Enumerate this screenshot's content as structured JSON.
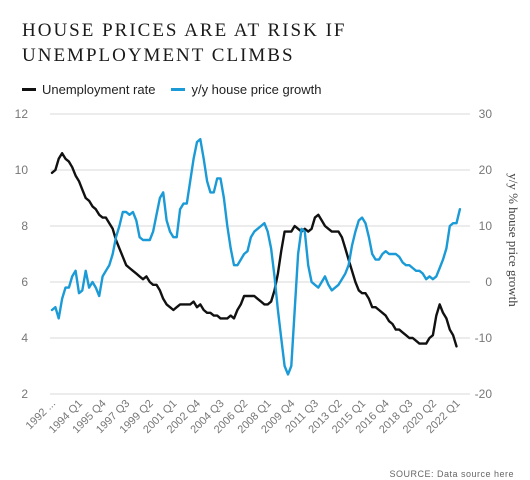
{
  "title": "HOUSE PRICES ARE AT RISK IF UNEMPLOYMENT CLIMBS",
  "source": "SOURCE: Data source here",
  "colors": {
    "unemployment": "#111111",
    "house_growth": "#1a9ad6",
    "grid": "#d9d9d9"
  },
  "chart_data": {
    "type": "line",
    "title": "HOUSE PRICES ARE AT RISK IF UNEMPLOYMENT CLIMBS",
    "xlabel": "",
    "ylabel": "",
    "y2label": "y/y % house price growth",
    "legend_position": "top-left",
    "grid": "horizontal",
    "ylim": [
      2,
      12
    ],
    "y2lim": [
      -20,
      30
    ],
    "yticks": [
      2,
      4,
      6,
      8,
      10,
      12
    ],
    "y2ticks": [
      -20,
      -10,
      0,
      10,
      20,
      30
    ],
    "x_start": 1992.0,
    "x_end": 2023.0,
    "xtick_labels": [
      {
        "x": 1992.0,
        "label": "1992 ..."
      },
      {
        "x": 1994.0,
        "label": "1994 Q1"
      },
      {
        "x": 1995.75,
        "label": "1995 Q4"
      },
      {
        "x": 1997.5,
        "label": "1997 Q3"
      },
      {
        "x": 1999.25,
        "label": "1999 Q2"
      },
      {
        "x": 2001.0,
        "label": "2001 Q1"
      },
      {
        "x": 2002.75,
        "label": "2002 Q4"
      },
      {
        "x": 2004.5,
        "label": "2004 Q3"
      },
      {
        "x": 2006.25,
        "label": "2006 Q2"
      },
      {
        "x": 2008.0,
        "label": "2008 Q1"
      },
      {
        "x": 2009.75,
        "label": "2009 Q4"
      },
      {
        "x": 2011.5,
        "label": "2011 Q3"
      },
      {
        "x": 2013.25,
        "label": "2013 Q2"
      },
      {
        "x": 2015.0,
        "label": "2015 Q1"
      },
      {
        "x": 2016.75,
        "label": "2016 Q4"
      },
      {
        "x": 2018.5,
        "label": "2018 Q3"
      },
      {
        "x": 2020.25,
        "label": "2020 Q2"
      },
      {
        "x": 2022.0,
        "label": "2022 Q1"
      }
    ],
    "series": [
      {
        "name": "Unemployment rate",
        "axis": "left",
        "points": [
          [
            1992.0,
            9.9
          ],
          [
            1992.25,
            10.0
          ],
          [
            1992.5,
            10.4
          ],
          [
            1992.75,
            10.6
          ],
          [
            1993.0,
            10.4
          ],
          [
            1993.25,
            10.3
          ],
          [
            1993.5,
            10.1
          ],
          [
            1993.75,
            9.8
          ],
          [
            1994.0,
            9.6
          ],
          [
            1994.25,
            9.3
          ],
          [
            1994.5,
            9.0
          ],
          [
            1994.75,
            8.9
          ],
          [
            1995.0,
            8.7
          ],
          [
            1995.25,
            8.6
          ],
          [
            1995.5,
            8.4
          ],
          [
            1995.75,
            8.3
          ],
          [
            1996.0,
            8.3
          ],
          [
            1996.25,
            8.1
          ],
          [
            1996.5,
            7.9
          ],
          [
            1996.75,
            7.5
          ],
          [
            1997.0,
            7.2
          ],
          [
            1997.25,
            6.9
          ],
          [
            1997.5,
            6.6
          ],
          [
            1997.75,
            6.5
          ],
          [
            1998.0,
            6.4
          ],
          [
            1998.25,
            6.3
          ],
          [
            1998.5,
            6.2
          ],
          [
            1998.75,
            6.1
          ],
          [
            1999.0,
            6.2
          ],
          [
            1999.25,
            6.0
          ],
          [
            1999.5,
            5.9
          ],
          [
            1999.75,
            5.9
          ],
          [
            2000.0,
            5.7
          ],
          [
            2000.25,
            5.4
          ],
          [
            2000.5,
            5.2
          ],
          [
            2000.75,
            5.1
          ],
          [
            2001.0,
            5.0
          ],
          [
            2001.25,
            5.1
          ],
          [
            2001.5,
            5.2
          ],
          [
            2001.75,
            5.2
          ],
          [
            2002.0,
            5.2
          ],
          [
            2002.25,
            5.2
          ],
          [
            2002.5,
            5.3
          ],
          [
            2002.75,
            5.1
          ],
          [
            2003.0,
            5.2
          ],
          [
            2003.25,
            5.0
          ],
          [
            2003.5,
            4.9
          ],
          [
            2003.75,
            4.9
          ],
          [
            2004.0,
            4.8
          ],
          [
            2004.25,
            4.8
          ],
          [
            2004.5,
            4.7
          ],
          [
            2004.75,
            4.7
          ],
          [
            2005.0,
            4.7
          ],
          [
            2005.25,
            4.8
          ],
          [
            2005.5,
            4.7
          ],
          [
            2005.75,
            5.0
          ],
          [
            2006.0,
            5.2
          ],
          [
            2006.25,
            5.5
          ],
          [
            2006.5,
            5.5
          ],
          [
            2006.75,
            5.5
          ],
          [
            2007.0,
            5.5
          ],
          [
            2007.25,
            5.4
          ],
          [
            2007.5,
            5.3
          ],
          [
            2007.75,
            5.2
          ],
          [
            2008.0,
            5.2
          ],
          [
            2008.25,
            5.3
          ],
          [
            2008.5,
            5.7
          ],
          [
            2008.75,
            6.3
          ],
          [
            2009.0,
            7.1
          ],
          [
            2009.25,
            7.8
          ],
          [
            2009.5,
            7.8
          ],
          [
            2009.75,
            7.8
          ],
          [
            2010.0,
            8.0
          ],
          [
            2010.25,
            7.9
          ],
          [
            2010.5,
            7.8
          ],
          [
            2010.75,
            7.9
          ],
          [
            2011.0,
            7.8
          ],
          [
            2011.25,
            7.9
          ],
          [
            2011.5,
            8.3
          ],
          [
            2011.75,
            8.4
          ],
          [
            2012.0,
            8.2
          ],
          [
            2012.25,
            8.0
          ],
          [
            2012.5,
            7.9
          ],
          [
            2012.75,
            7.8
          ],
          [
            2013.0,
            7.8
          ],
          [
            2013.25,
            7.8
          ],
          [
            2013.5,
            7.6
          ],
          [
            2013.75,
            7.2
          ],
          [
            2014.0,
            6.8
          ],
          [
            2014.25,
            6.4
          ],
          [
            2014.5,
            6.0
          ],
          [
            2014.75,
            5.7
          ],
          [
            2015.0,
            5.6
          ],
          [
            2015.25,
            5.6
          ],
          [
            2015.5,
            5.4
          ],
          [
            2015.75,
            5.1
          ],
          [
            2016.0,
            5.1
          ],
          [
            2016.25,
            5.0
          ],
          [
            2016.5,
            4.9
          ],
          [
            2016.75,
            4.8
          ],
          [
            2017.0,
            4.6
          ],
          [
            2017.25,
            4.5
          ],
          [
            2017.5,
            4.3
          ],
          [
            2017.75,
            4.3
          ],
          [
            2018.0,
            4.2
          ],
          [
            2018.25,
            4.1
          ],
          [
            2018.5,
            4.0
          ],
          [
            2018.75,
            4.0
          ],
          [
            2019.0,
            3.9
          ],
          [
            2019.25,
            3.8
          ],
          [
            2019.5,
            3.8
          ],
          [
            2019.75,
            3.8
          ],
          [
            2020.0,
            4.0
          ],
          [
            2020.25,
            4.1
          ],
          [
            2020.5,
            4.8
          ],
          [
            2020.75,
            5.2
          ],
          [
            2021.0,
            4.9
          ],
          [
            2021.25,
            4.7
          ],
          [
            2021.5,
            4.3
          ],
          [
            2021.75,
            4.1
          ],
          [
            2022.0,
            3.7
          ]
        ]
      },
      {
        "name": "y/y house price growth",
        "axis": "right",
        "points": [
          [
            1992.0,
            -5
          ],
          [
            1992.25,
            -4.5
          ],
          [
            1992.5,
            -6.5
          ],
          [
            1992.75,
            -3
          ],
          [
            1993.0,
            -1
          ],
          [
            1993.25,
            -1
          ],
          [
            1993.5,
            1
          ],
          [
            1993.75,
            2
          ],
          [
            1994.0,
            -2
          ],
          [
            1994.25,
            -1.5
          ],
          [
            1994.5,
            2
          ],
          [
            1994.75,
            -1
          ],
          [
            1995.0,
            0
          ],
          [
            1995.25,
            -1
          ],
          [
            1995.5,
            -2.5
          ],
          [
            1995.75,
            1
          ],
          [
            1996.0,
            2
          ],
          [
            1996.25,
            3
          ],
          [
            1996.5,
            5
          ],
          [
            1996.75,
            8
          ],
          [
            1997.0,
            10
          ],
          [
            1997.25,
            12.5
          ],
          [
            1997.5,
            12.5
          ],
          [
            1997.75,
            12
          ],
          [
            1998.0,
            12.5
          ],
          [
            1998.25,
            11
          ],
          [
            1998.5,
            8
          ],
          [
            1998.75,
            7.5
          ],
          [
            1999.0,
            7.5
          ],
          [
            1999.25,
            7.5
          ],
          [
            1999.5,
            9
          ],
          [
            1999.75,
            12
          ],
          [
            2000.0,
            15
          ],
          [
            2000.25,
            16
          ],
          [
            2000.5,
            11
          ],
          [
            2000.75,
            9
          ],
          [
            2001.0,
            8
          ],
          [
            2001.25,
            8
          ],
          [
            2001.5,
            13
          ],
          [
            2001.75,
            14
          ],
          [
            2002.0,
            14
          ],
          [
            2002.25,
            18
          ],
          [
            2002.5,
            22
          ],
          [
            2002.75,
            25
          ],
          [
            2003.0,
            25.5
          ],
          [
            2003.25,
            22
          ],
          [
            2003.5,
            18
          ],
          [
            2003.75,
            16
          ],
          [
            2004.0,
            16
          ],
          [
            2004.25,
            18.5
          ],
          [
            2004.5,
            18.5
          ],
          [
            2004.75,
            15
          ],
          [
            2005.0,
            10
          ],
          [
            2005.25,
            6
          ],
          [
            2005.5,
            3
          ],
          [
            2005.75,
            3
          ],
          [
            2006.0,
            4
          ],
          [
            2006.25,
            5
          ],
          [
            2006.5,
            5.5
          ],
          [
            2006.75,
            8
          ],
          [
            2007.0,
            9
          ],
          [
            2007.25,
            9.5
          ],
          [
            2007.5,
            10
          ],
          [
            2007.75,
            10.5
          ],
          [
            2008.0,
            9
          ],
          [
            2008.25,
            6
          ],
          [
            2008.5,
            1
          ],
          [
            2008.75,
            -5
          ],
          [
            2009.0,
            -10
          ],
          [
            2009.25,
            -15
          ],
          [
            2009.5,
            -16.5
          ],
          [
            2009.75,
            -15
          ],
          [
            2010.0,
            -5
          ],
          [
            2010.25,
            5
          ],
          [
            2010.5,
            9.5
          ],
          [
            2010.75,
            9
          ],
          [
            2011.0,
            3
          ],
          [
            2011.25,
            0
          ],
          [
            2011.5,
            -0.5
          ],
          [
            2011.75,
            -1
          ],
          [
            2012.0,
            0
          ],
          [
            2012.25,
            1
          ],
          [
            2012.5,
            -0.5
          ],
          [
            2012.75,
            -1.5
          ],
          [
            2013.0,
            -1
          ],
          [
            2013.25,
            -0.5
          ],
          [
            2013.5,
            0.5
          ],
          [
            2013.75,
            1.5
          ],
          [
            2014.0,
            3
          ],
          [
            2014.25,
            6.5
          ],
          [
            2014.5,
            9
          ],
          [
            2014.75,
            11
          ],
          [
            2015.0,
            11.5
          ],
          [
            2015.25,
            10.5
          ],
          [
            2015.5,
            8
          ],
          [
            2015.75,
            5
          ],
          [
            2016.0,
            4
          ],
          [
            2016.25,
            4
          ],
          [
            2016.5,
            5
          ],
          [
            2016.75,
            5.5
          ],
          [
            2017.0,
            5
          ],
          [
            2017.25,
            5
          ],
          [
            2017.5,
            5
          ],
          [
            2017.75,
            4.5
          ],
          [
            2018.0,
            3.5
          ],
          [
            2018.25,
            3
          ],
          [
            2018.5,
            3
          ],
          [
            2018.75,
            2.5
          ],
          [
            2019.0,
            2
          ],
          [
            2019.25,
            2
          ],
          [
            2019.5,
            1.5
          ],
          [
            2019.75,
            0.5
          ],
          [
            2020.0,
            1
          ],
          [
            2020.25,
            0.5
          ],
          [
            2020.5,
            1
          ],
          [
            2020.75,
            2.5
          ],
          [
            2021.0,
            4
          ],
          [
            2021.25,
            6
          ],
          [
            2021.5,
            10
          ],
          [
            2021.75,
            10.5
          ],
          [
            2022.0,
            10.5
          ],
          [
            2022.25,
            13
          ]
        ]
      }
    ]
  }
}
